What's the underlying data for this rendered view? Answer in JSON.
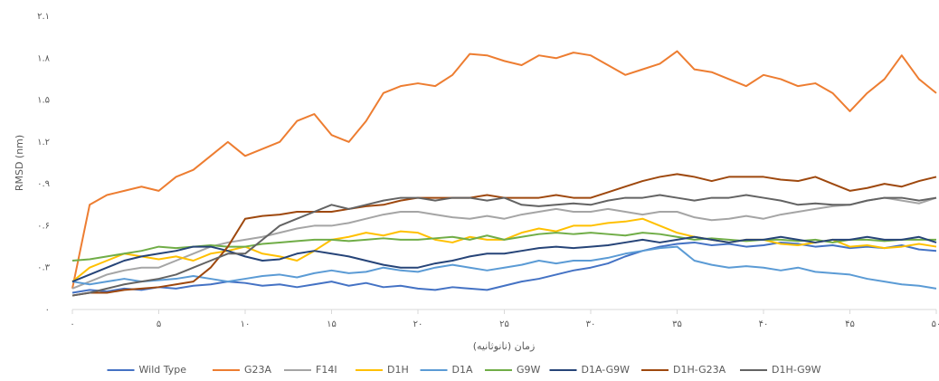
{
  "chart_data": {
    "type": "line",
    "y_label": "RMSD (nm)",
    "x_label": "زمان (نانوثانیه)",
    "x": [
      0,
      1,
      2,
      3,
      4,
      5,
      6,
      7,
      8,
      9,
      10,
      11,
      12,
      13,
      14,
      15,
      16,
      17,
      18,
      19,
      20,
      21,
      22,
      23,
      24,
      25,
      26,
      27,
      28,
      29,
      30,
      31,
      32,
      33,
      34,
      35,
      36,
      37,
      38,
      39,
      40,
      41,
      42,
      43,
      44,
      45,
      46,
      47,
      48,
      49,
      50
    ],
    "xlim": [
      0,
      50
    ],
    "xticks": [
      {
        "value": 0,
        "label": "۰"
      },
      {
        "value": 5,
        "label": "۵"
      },
      {
        "value": 10,
        "label": "۱۰"
      },
      {
        "value": 15,
        "label": "۱۵"
      },
      {
        "value": 20,
        "label": "۲۰"
      },
      {
        "value": 25,
        "label": "۲۵"
      },
      {
        "value": 30,
        "label": "۳۰"
      },
      {
        "value": 35,
        "label": "۳۵"
      },
      {
        "value": 40,
        "label": "۴۰"
      },
      {
        "value": 45,
        "label": "۴۵"
      },
      {
        "value": 50,
        "label": "۵۰"
      }
    ],
    "ylim": [
      0,
      2.1
    ],
    "yticks": [
      {
        "value": 0,
        "label": "۰"
      },
      {
        "value": 0.3,
        "label": "۰.۳"
      },
      {
        "value": 0.6,
        "label": "۰.۶"
      },
      {
        "value": 0.9,
        "label": "۰.۹"
      },
      {
        "value": 1.2,
        "label": "۱.۲"
      },
      {
        "value": 1.5,
        "label": "۱.۵"
      },
      {
        "value": 1.8,
        "label": "۱.۸"
      },
      {
        "value": 2.1,
        "label": "۲.۱"
      }
    ],
    "legend": "bottom",
    "series": [
      {
        "name": "Wild Type",
        "color": "#4472c4",
        "values": [
          0.12,
          0.14,
          0.13,
          0.15,
          0.14,
          0.16,
          0.15,
          0.17,
          0.18,
          0.2,
          0.19,
          0.17,
          0.18,
          0.16,
          0.18,
          0.2,
          0.17,
          0.19,
          0.16,
          0.17,
          0.15,
          0.14,
          0.16,
          0.15,
          0.14,
          0.17,
          0.2,
          0.22,
          0.25,
          0.28,
          0.3,
          0.33,
          0.38,
          0.42,
          0.45,
          0.47,
          0.48,
          0.46,
          0.47,
          0.45,
          0.46,
          0.48,
          0.47,
          0.45,
          0.46,
          0.44,
          0.45,
          0.44,
          0.46,
          0.43,
          0.42
        ]
      },
      {
        "name": "G23A",
        "color": "#ed7d31",
        "values": [
          0.15,
          0.75,
          0.82,
          0.85,
          0.88,
          0.85,
          0.95,
          1.0,
          1.1,
          1.2,
          1.1,
          1.15,
          1.2,
          1.35,
          1.4,
          1.25,
          1.2,
          1.35,
          1.55,
          1.6,
          1.62,
          1.6,
          1.68,
          1.83,
          1.82,
          1.78,
          1.75,
          1.82,
          1.8,
          1.84,
          1.82,
          1.75,
          1.68,
          1.72,
          1.76,
          1.85,
          1.72,
          1.7,
          1.65,
          1.6,
          1.68,
          1.65,
          1.6,
          1.62,
          1.55,
          1.42,
          1.55,
          1.65,
          1.82,
          1.65,
          1.55
        ]
      },
      {
        "name": "F14I",
        "color": "#a5a5a5",
        "values": [
          0.15,
          0.2,
          0.25,
          0.28,
          0.3,
          0.3,
          0.35,
          0.4,
          0.45,
          0.48,
          0.5,
          0.52,
          0.55,
          0.58,
          0.6,
          0.6,
          0.62,
          0.65,
          0.68,
          0.7,
          0.7,
          0.68,
          0.66,
          0.65,
          0.67,
          0.65,
          0.68,
          0.7,
          0.72,
          0.7,
          0.7,
          0.72,
          0.7,
          0.68,
          0.7,
          0.7,
          0.66,
          0.64,
          0.65,
          0.67,
          0.65,
          0.68,
          0.7,
          0.72,
          0.74,
          0.75,
          0.78,
          0.8,
          0.78,
          0.76,
          0.8
        ]
      },
      {
        "name": "D1H",
        "color": "#ffc000",
        "values": [
          0.2,
          0.3,
          0.35,
          0.4,
          0.38,
          0.36,
          0.38,
          0.35,
          0.4,
          0.42,
          0.45,
          0.4,
          0.38,
          0.35,
          0.42,
          0.5,
          0.52,
          0.55,
          0.53,
          0.56,
          0.55,
          0.5,
          0.48,
          0.52,
          0.5,
          0.5,
          0.55,
          0.58,
          0.56,
          0.6,
          0.6,
          0.62,
          0.63,
          0.65,
          0.6,
          0.55,
          0.52,
          0.5,
          0.48,
          0.5,
          0.5,
          0.47,
          0.46,
          0.48,
          0.5,
          0.45,
          0.46,
          0.44,
          0.45,
          0.47,
          0.45
        ]
      },
      {
        "name": "D1A",
        "color": "#5b9bd5",
        "values": [
          0.2,
          0.18,
          0.2,
          0.22,
          0.2,
          0.21,
          0.22,
          0.24,
          0.22,
          0.2,
          0.22,
          0.24,
          0.25,
          0.23,
          0.26,
          0.28,
          0.26,
          0.27,
          0.3,
          0.28,
          0.27,
          0.3,
          0.32,
          0.3,
          0.28,
          0.3,
          0.32,
          0.35,
          0.33,
          0.35,
          0.35,
          0.37,
          0.4,
          0.42,
          0.44,
          0.45,
          0.35,
          0.32,
          0.3,
          0.31,
          0.3,
          0.28,
          0.3,
          0.27,
          0.26,
          0.25,
          0.22,
          0.2,
          0.18,
          0.17,
          0.15
        ]
      },
      {
        "name": "G9W",
        "color": "#70ad47",
        "values": [
          0.35,
          0.36,
          0.38,
          0.4,
          0.42,
          0.45,
          0.44,
          0.45,
          0.46,
          0.45,
          0.45,
          0.47,
          0.48,
          0.49,
          0.5,
          0.5,
          0.49,
          0.5,
          0.51,
          0.5,
          0.5,
          0.51,
          0.52,
          0.5,
          0.53,
          0.5,
          0.52,
          0.54,
          0.55,
          0.54,
          0.55,
          0.54,
          0.53,
          0.55,
          0.54,
          0.52,
          0.5,
          0.51,
          0.5,
          0.49,
          0.5,
          0.5,
          0.49,
          0.5,
          0.48,
          0.5,
          0.5,
          0.49,
          0.5,
          0.5,
          0.5
        ]
      },
      {
        "name": "D1A-G9W",
        "color": "#264478",
        "values": [
          0.2,
          0.25,
          0.3,
          0.35,
          0.38,
          0.4,
          0.42,
          0.45,
          0.45,
          0.42,
          0.38,
          0.35,
          0.36,
          0.4,
          0.42,
          0.4,
          0.38,
          0.35,
          0.32,
          0.3,
          0.3,
          0.33,
          0.35,
          0.38,
          0.4,
          0.4,
          0.42,
          0.44,
          0.45,
          0.44,
          0.45,
          0.46,
          0.48,
          0.5,
          0.48,
          0.5,
          0.52,
          0.5,
          0.48,
          0.5,
          0.5,
          0.52,
          0.5,
          0.48,
          0.5,
          0.5,
          0.52,
          0.5,
          0.5,
          0.52,
          0.48
        ]
      },
      {
        "name": "D1H-G23A",
        "color": "#9e480e",
        "values": [
          0.1,
          0.12,
          0.12,
          0.14,
          0.15,
          0.16,
          0.18,
          0.2,
          0.3,
          0.45,
          0.65,
          0.67,
          0.68,
          0.7,
          0.7,
          0.7,
          0.72,
          0.74,
          0.75,
          0.78,
          0.8,
          0.8,
          0.8,
          0.8,
          0.82,
          0.8,
          0.8,
          0.8,
          0.82,
          0.8,
          0.8,
          0.84,
          0.88,
          0.92,
          0.95,
          0.97,
          0.95,
          0.92,
          0.95,
          0.95,
          0.95,
          0.93,
          0.92,
          0.95,
          0.9,
          0.85,
          0.87,
          0.9,
          0.88,
          0.92,
          0.95
        ]
      },
      {
        "name": "D1H-G9W",
        "color": "#636363",
        "values": [
          0.1,
          0.12,
          0.15,
          0.18,
          0.2,
          0.22,
          0.25,
          0.3,
          0.35,
          0.4,
          0.4,
          0.5,
          0.6,
          0.65,
          0.7,
          0.75,
          0.72,
          0.75,
          0.78,
          0.8,
          0.8,
          0.78,
          0.8,
          0.8,
          0.78,
          0.8,
          0.75,
          0.74,
          0.75,
          0.76,
          0.75,
          0.78,
          0.8,
          0.8,
          0.82,
          0.8,
          0.78,
          0.8,
          0.8,
          0.82,
          0.8,
          0.78,
          0.75,
          0.76,
          0.75,
          0.75,
          0.78,
          0.8,
          0.8,
          0.78,
          0.8
        ]
      }
    ]
  }
}
